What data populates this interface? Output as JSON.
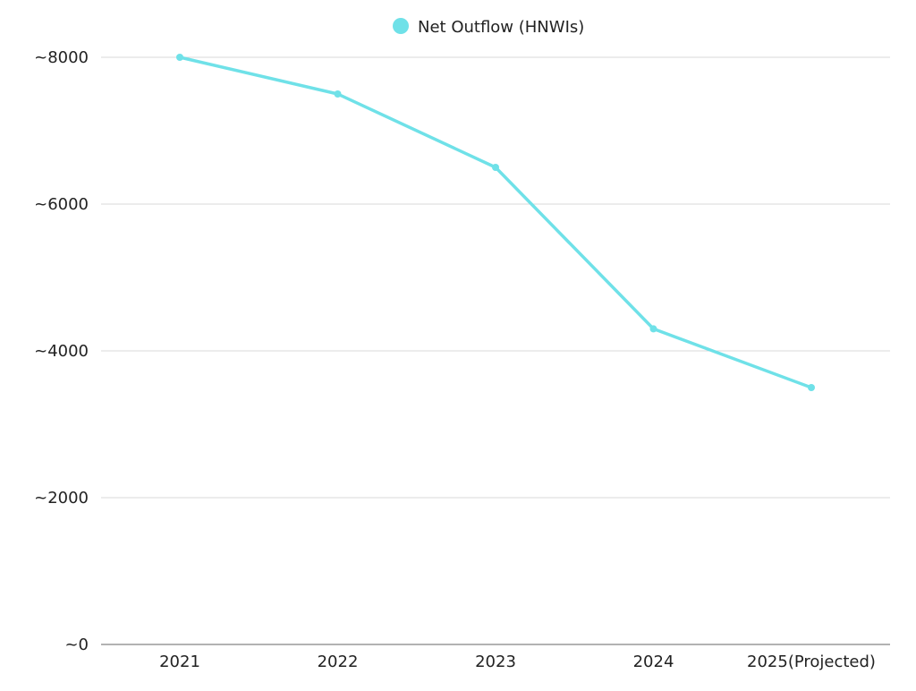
{
  "chart_data": {
    "type": "line",
    "categories": [
      "2021",
      "2022",
      "2023",
      "2024",
      "2025(Projected)"
    ],
    "series": [
      {
        "name": "Net Outflow (HNWIs)",
        "values": [
          8000,
          7500,
          6500,
          4300,
          3500
        ],
        "color": "#6fe1e8"
      }
    ],
    "y_ticks": [
      {
        "value": 0,
        "label": "~0"
      },
      {
        "value": 2000,
        "label": "~2000"
      },
      {
        "value": 4000,
        "label": "~4000"
      },
      {
        "value": 6000,
        "label": "~6000"
      },
      {
        "value": 8000,
        "label": "~8000"
      }
    ],
    "ylim": [
      0,
      8000
    ],
    "grid": true,
    "legend_position": "top-center",
    "title": "",
    "xlabel": "",
    "ylabel": ""
  },
  "colors": {
    "series": "#6fe1e8",
    "grid": "#d9d9d9",
    "axis": "#999999",
    "text": "#222222"
  }
}
